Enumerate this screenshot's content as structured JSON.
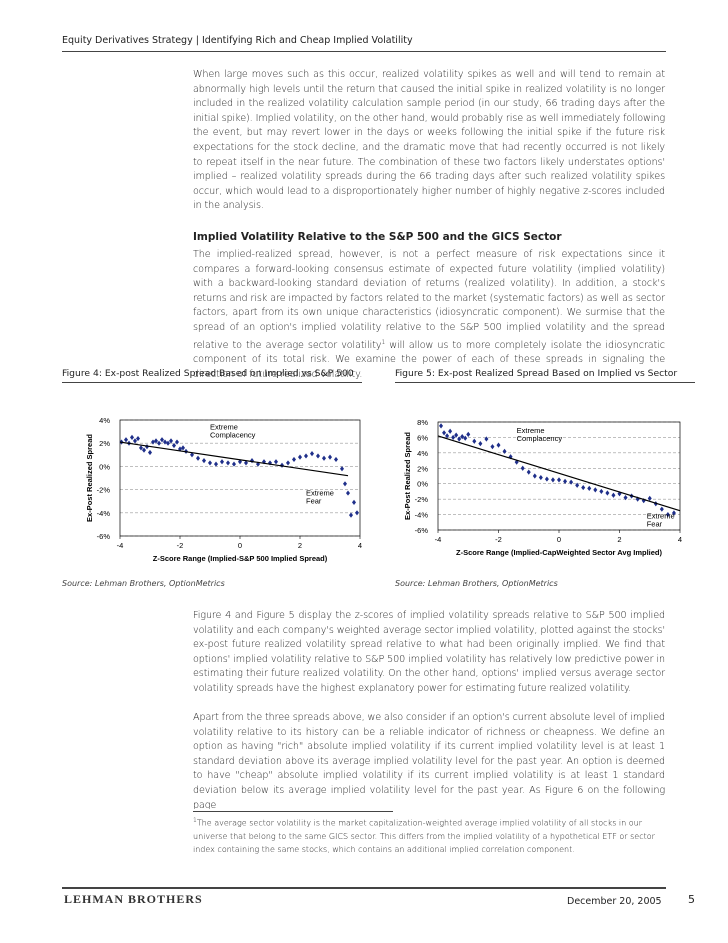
{
  "header": {
    "title": "Equity Derivatives Strategy | Identifying Rich and Cheap Implied Volatility"
  },
  "paragraphs": [
    "When large moves such as this occur, realized volatility spikes as well and will tend to remain at abnormally high levels until the return that caused the initial spike in realized volatility is no longer included in the realized volatility calculation sample period (in our study, 66 trading days after the initial spike). Implied volatility, on the other hand, would probably rise as well immediately following the event, but may revert lower in the days or weeks following the initial spike if the future risk expectations for the stock decline, and the dramatic move that had recently occurred is not likely to repeat itself in the near future. The combination of these two factors likely understates options' implied – realized volatility spreads during the 66 trading days after such realized volatility spikes occur, which would lead to a disproportionately higher number of highly negative z-scores included in the analysis."
  ],
  "section": {
    "heading": "Implied Volatility Relative to the S&P 500 and the GICS Sector",
    "text_before": "The implied-realized spread, however, is not a perfect measure of risk expectations since it compares a forward-looking consensus estimate of expected future volatility (implied volatility) with a backward-looking standard deviation of returns (realized volatility). In addition, a stock's returns and risk are impacted by factors related to the market (systematic factors) as well as sector factors, apart from its own unique characteristics (idiosyncratic component). We surmise that the spread of an option's implied volatility relative to the S&P 500 implied volatility and the spread relative to the average sector volatility",
    "footnote_ref": "1",
    "text_after": " will allow us to more completely isolate the idiosyncratic component of its total risk. We examine the power of each of these spreads in signaling the direction of future realized volatility."
  },
  "chart_data": [
    {
      "type": "scatter",
      "title": "Figure 4: Ex-post Realized Spread Based on Implied vs S&P 500",
      "x_label": "Z-Score Range (Implied-S&P 500 Implied Spread)",
      "y_label": "Ex-Post Realized Spread",
      "source": "Source: Lehman Brothers, OptionMetrics",
      "annotations": [
        {
          "text": "Extreme Complacency",
          "x": -1.0,
          "y": 3.2
        },
        {
          "text": "Extreme Fear",
          "x": 2.2,
          "y": -2.5
        }
      ],
      "color": "#1f2f8a",
      "x": [
        -3.95,
        -3.8,
        -3.7,
        -3.6,
        -3.5,
        -3.4,
        -3.3,
        -3.2,
        -3.1,
        -3.0,
        -2.9,
        -2.8,
        -2.7,
        -2.6,
        -2.5,
        -2.4,
        -2.3,
        -2.2,
        -2.1,
        -2.0,
        -1.9,
        -1.8,
        -1.6,
        -1.4,
        -1.2,
        -1.0,
        -0.8,
        -0.6,
        -0.4,
        -0.2,
        0,
        0.2,
        0.4,
        0.6,
        0.8,
        1.0,
        1.2,
        1.4,
        1.6,
        1.8,
        2.0,
        2.2,
        2.4,
        2.6,
        2.8,
        3.0,
        3.2,
        3.4,
        3.5,
        3.6,
        3.7,
        3.8,
        3.9
      ],
      "values": [
        2.1,
        2.3,
        2.0,
        2.5,
        2.2,
        2.4,
        1.6,
        1.4,
        1.7,
        1.2,
        2.1,
        2.2,
        2.0,
        2.3,
        2.1,
        2.0,
        2.2,
        1.8,
        2.1,
        1.5,
        1.6,
        1.3,
        1.0,
        0.7,
        0.5,
        0.3,
        0.2,
        0.4,
        0.3,
        0.2,
        0.4,
        0.3,
        0.5,
        0.2,
        0.4,
        0.3,
        0.4,
        0.1,
        0.3,
        0.6,
        0.8,
        0.9,
        1.1,
        0.9,
        0.7,
        0.8,
        0.6,
        -0.2,
        -1.5,
        -2.3,
        -4.2,
        -3.1,
        -4.0
      ],
      "trendline": {
        "x": [
          -4,
          3.6
        ],
        "y": [
          2.1,
          -0.8
        ]
      },
      "xlim": [
        -4,
        4
      ],
      "xticks": [
        -4,
        -2,
        0,
        2,
        4
      ],
      "ylim": [
        -6,
        4
      ],
      "yticks": [
        {
          "value": -6,
          "label": "-6%"
        },
        {
          "value": -4,
          "label": "-4%"
        },
        {
          "value": -2,
          "label": "-2%"
        },
        {
          "value": 0,
          "label": "0%"
        },
        {
          "value": 2,
          "label": "2%"
        },
        {
          "value": 4,
          "label": "4%"
        }
      ],
      "grid": true
    },
    {
      "type": "scatter",
      "title": "Figure 5: Ex-post Realized Spread Based on Implied vs Sector",
      "x_label": "Z-Score Range (Implied-CapWeighted Sector Avg Implied)",
      "y_label": "Ex-Post Realized Spread",
      "source": "Source: Lehman Brothers, OptionMetrics",
      "annotations": [
        {
          "text": "Extreme Complacency",
          "x": -1.4,
          "y": 6.6
        },
        {
          "text": "Extreme Fear",
          "x": 2.9,
          "y": -4.5
        }
      ],
      "color": "#1f2f8a",
      "x": [
        -3.9,
        -3.8,
        -3.7,
        -3.6,
        -3.5,
        -3.4,
        -3.3,
        -3.2,
        -3.1,
        -3.0,
        -2.8,
        -2.6,
        -2.4,
        -2.2,
        -2.0,
        -1.8,
        -1.6,
        -1.4,
        -1.2,
        -1.0,
        -0.8,
        -0.6,
        -0.4,
        -0.2,
        0,
        0.2,
        0.4,
        0.6,
        0.8,
        1.0,
        1.2,
        1.4,
        1.6,
        1.8,
        2.0,
        2.2,
        2.4,
        2.6,
        2.8,
        3.0,
        3.2,
        3.4,
        3.6,
        3.8
      ],
      "values": [
        7.5,
        6.6,
        6.2,
        6.8,
        6.0,
        6.3,
        5.8,
        6.1,
        5.9,
        6.4,
        5.5,
        5.2,
        5.8,
        4.8,
        5.0,
        4.2,
        3.5,
        2.8,
        2.0,
        1.5,
        1.0,
        0.8,
        0.6,
        0.5,
        0.5,
        0.3,
        0.2,
        -0.2,
        -0.5,
        -0.6,
        -0.8,
        -1.0,
        -1.2,
        -1.5,
        -1.3,
        -1.8,
        -1.6,
        -2.0,
        -2.2,
        -1.9,
        -2.6,
        -3.3,
        -4.0,
        -3.8
      ],
      "trendline": {
        "x": [
          -4,
          4
        ],
        "y": [
          6.2,
          -3.5
        ]
      },
      "xlim": [
        -4,
        4
      ],
      "xticks": [
        -4,
        -2,
        0,
        2,
        4
      ],
      "ylim": [
        -6,
        8
      ],
      "yticks": [
        {
          "value": -6,
          "label": "-6%"
        },
        {
          "value": -4,
          "label": "-4%"
        },
        {
          "value": -2,
          "label": "-2%"
        },
        {
          "value": 0,
          "label": "0%"
        },
        {
          "value": 2,
          "label": "2%"
        },
        {
          "value": 4,
          "label": "4%"
        },
        {
          "value": 6,
          "label": "6%"
        },
        {
          "value": 8,
          "label": "8%"
        }
      ],
      "grid": true
    }
  ],
  "paragraphs_after": [
    "Figure 4 and Figure 5 display the z-scores of implied volatility spreads relative to S&P 500 implied volatility and each company's weighted average sector implied volatility, plotted against the stocks' ex-post future realized volatility spread relative to what had been originally implied. We find that options' implied volatility relative to S&P 500 implied volatility has relatively low predictive power in estimating their future realized volatility. On the other hand, options' implied versus average sector volatility spreads have the highest explanatory power for estimating future realized volatility.",
    "Apart from the three spreads above, we also consider if an option's current absolute level of implied volatility relative to its history can be a reliable indicator of richness or cheapness. We define an option as having \"rich\" absolute implied volatility if its current implied volatility level is at least 1 standard deviation above its average implied volatility level for the past year. An option is deemed to have \"cheap\" absolute implied volatility if its current implied volatility is at least 1 standard deviation below its average implied volatility level for the past year. As Figure 6 on the following page"
  ],
  "footnote": {
    "marker": "1",
    "text": "The average sector volatility is the market capitalization-weighted average implied volatility of all stocks in our universe that belong to the same GICS sector. This differs from the implied volatility of a hypothetical ETF or sector index containing the same stocks, which contains an additional implied correlation component."
  },
  "footer": {
    "logo": "LEHMAN BROTHERS",
    "date": "December 20, 2005",
    "page": "5"
  }
}
